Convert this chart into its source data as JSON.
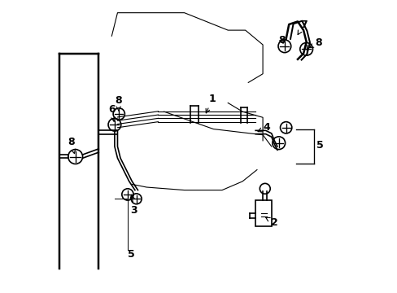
{
  "background_color": "#ffffff",
  "line_color": "#000000",
  "linewidth": 1.2,
  "thin_linewidth": 0.8,
  "fig_width": 4.89,
  "fig_height": 3.6,
  "dpi": 100
}
